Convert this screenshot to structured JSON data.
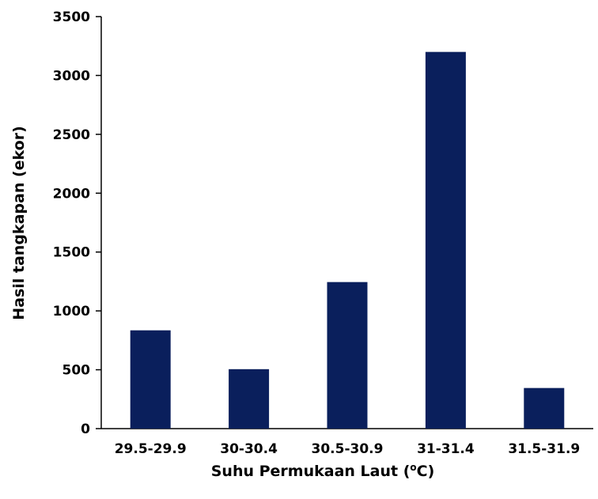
{
  "chart_data": {
    "type": "bar",
    "title": "",
    "xlabel_main": "Suhu Permukaan Laut (",
    "xlabel_sup": "o",
    "xlabel_tail": "C)",
    "ylabel": "Hasil tangkapan (ekor)",
    "categories": [
      "29.5-29.9",
      "30-30.4",
      "30.5-30.9",
      "31-31.4",
      "31.5-31.9"
    ],
    "values": [
      835,
      505,
      1245,
      3200,
      345
    ],
    "ylim": [
      0,
      3500
    ],
    "yticks": [
      0,
      500,
      1000,
      1500,
      2000,
      2500,
      3000,
      3500
    ],
    "bar_color": "#0a1f5c",
    "grid": false,
    "legend": "none"
  }
}
